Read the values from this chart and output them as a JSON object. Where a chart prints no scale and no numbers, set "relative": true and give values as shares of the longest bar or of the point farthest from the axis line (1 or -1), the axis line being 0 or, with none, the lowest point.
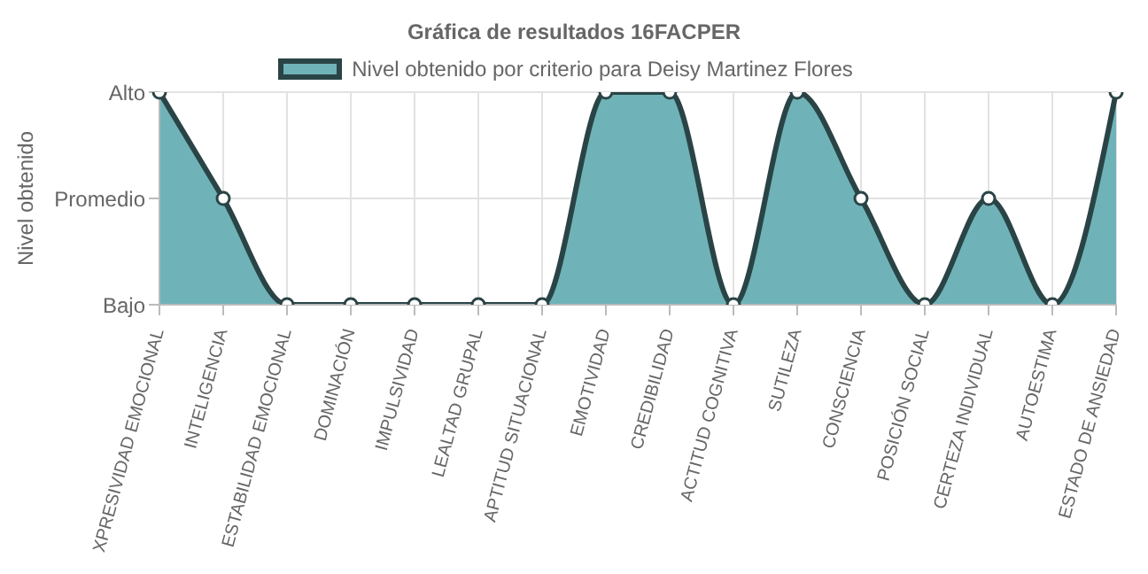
{
  "chart_data": {
    "type": "area",
    "title": "Gráfica de resultados 16FACPER",
    "ylabel": "Nivel obtenido",
    "categories": [
      "XPRESIVIDAD EMOCIONAL",
      "INTELIGENCIA",
      "ESTABILIDAD EMOCIONAL",
      "DOMINACIÓN",
      "IMPULSIVIDAD",
      "LEALTAD GRUPAL",
      "APTITUD SITUACIONAL",
      "EMOTIVIDAD",
      "CREDIBILIDAD",
      "ACTITUD COGNITIVA",
      "SUTILEZA",
      "CONSCIENCIA",
      "POSICIÓN SOCIAL",
      "CERTEZA INDIVIDUAL",
      "AUTOESTIMA",
      "ESTADO DE ANSIEDAD"
    ],
    "series": [
      {
        "name": "Nivel obtenido por criterio para Deisy Martinez Flores",
        "color": "#6fb3b8",
        "values": [
          1,
          0.5,
          0,
          0,
          0,
          0,
          0,
          1,
          1,
          0,
          1,
          0.5,
          0,
          0.5,
          0,
          1
        ]
      }
    ],
    "relative": true,
    "y_categories": [
      "Alto",
      "Promedio",
      "Bajo"
    ],
    "grid": true,
    "legend": "top",
    "marker": "circle",
    "line_style": "solid"
  }
}
